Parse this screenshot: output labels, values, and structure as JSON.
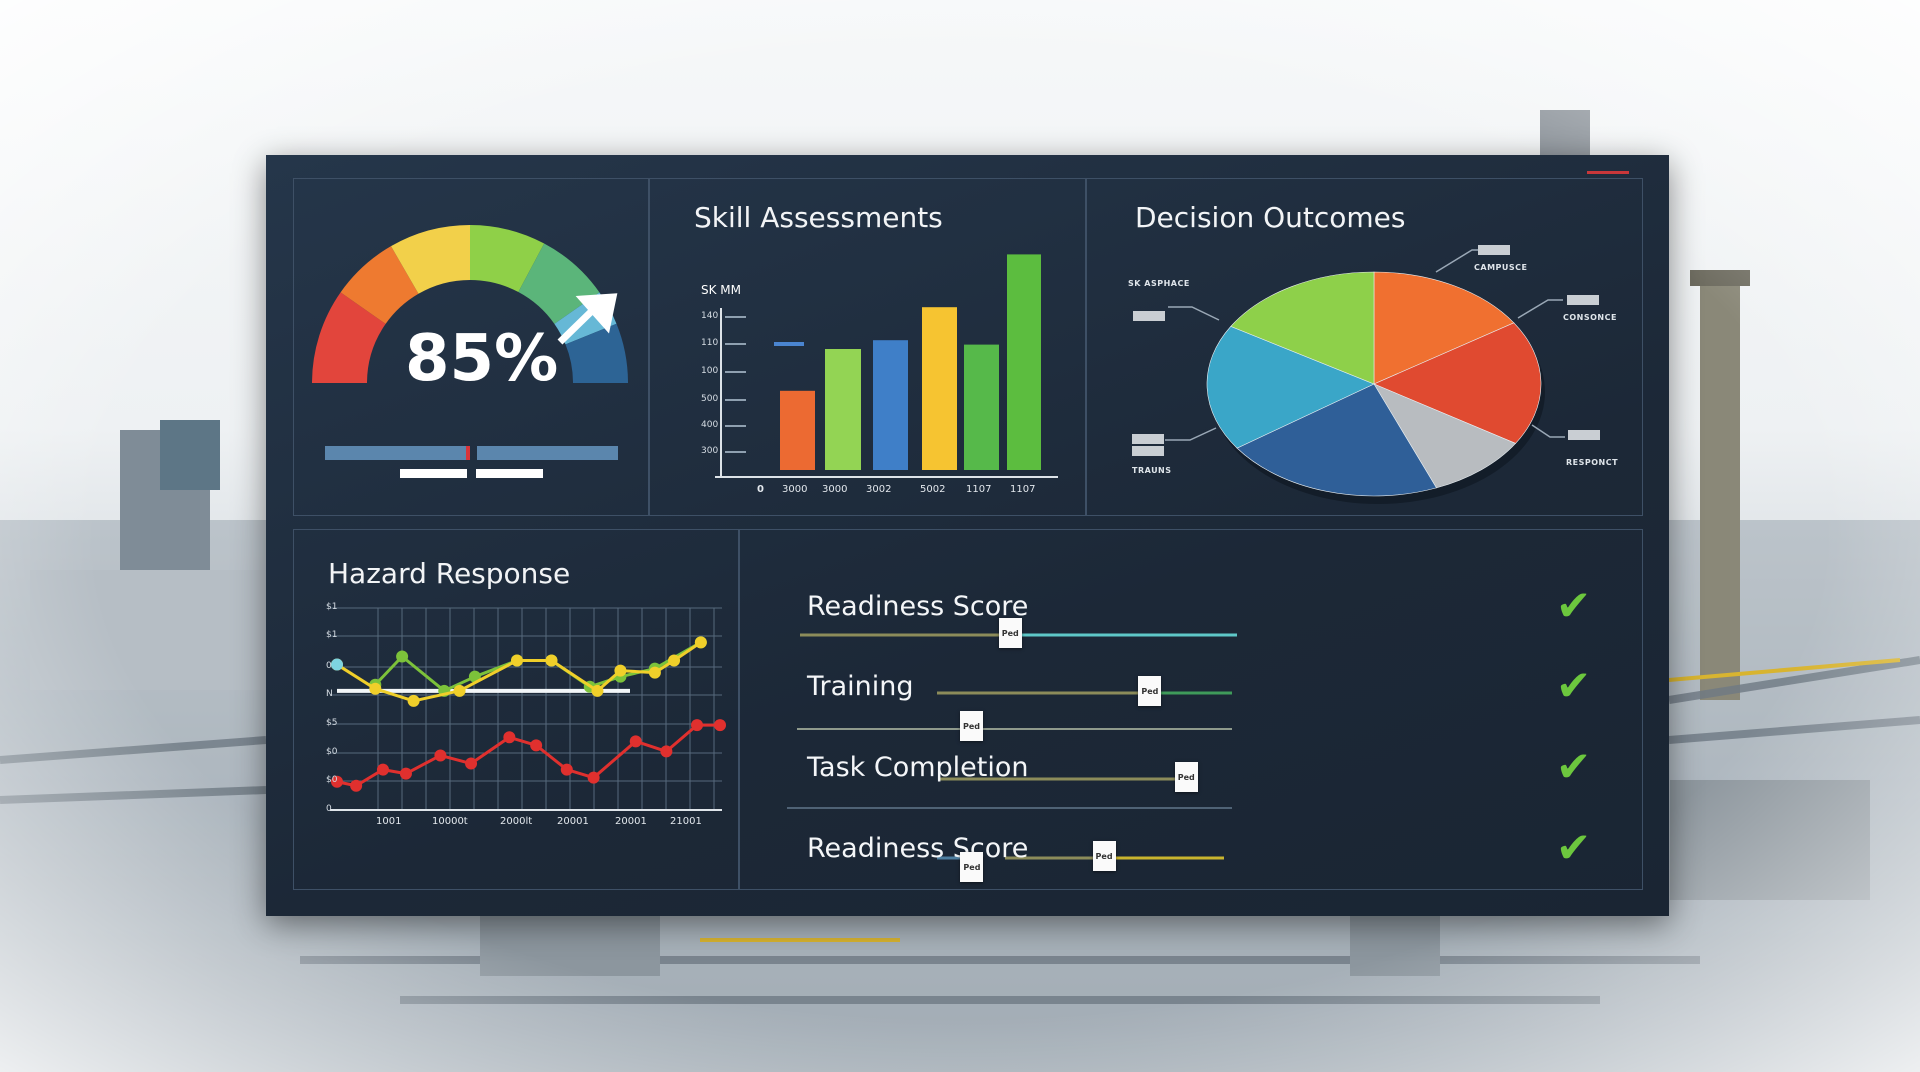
{
  "gauge": {
    "value_label": "85%",
    "value": 85,
    "colors": [
      "#e2453c",
      "#ee7a30",
      "#f2d04a",
      "#8fd048",
      "#5bb57a",
      "#66b8d6",
      "#2d6495"
    ]
  },
  "skill": {
    "title": "Skill Assessments",
    "chart_data": {
      "type": "bar",
      "title": "Skill Assessments",
      "ylabel": "SK MM",
      "ytick_labels": [
        "140",
        "110",
        "100",
        "500",
        "400",
        "300"
      ],
      "origin_label": "0",
      "categories": [
        "3000",
        "3000",
        "3002",
        "5002",
        "1107",
        "1107"
      ],
      "values": [
        36,
        55,
        59,
        74,
        57,
        98
      ],
      "colors": [
        "#ec6a32",
        "#93d454",
        "#3f7fc8",
        "#f6c431",
        "#56b94a",
        "#5cbd3f"
      ],
      "ylim": [
        0,
        100
      ]
    }
  },
  "decision": {
    "title": "Decision Outcomes",
    "chart_data": {
      "type": "pie",
      "title": "Decision Outcomes",
      "annotation": "SK ASPHACE",
      "slices": [
        {
          "label": "CAMPUSCE",
          "value": 15.8,
          "color": "#f07030"
        },
        {
          "label": "CONSONCE",
          "value": 18.1,
          "color": "#e04a30"
        },
        {
          "label": "RESPONCT",
          "value": 10.0,
          "color": "#b8bcc0"
        },
        {
          "label": "",
          "value": 21.4,
          "color": "#2f5f98"
        },
        {
          "label": "TRAUNS",
          "value": 18.3,
          "color": "#3aa6c8"
        },
        {
          "label": "",
          "value": 16.4,
          "color": "#8ed04a"
        }
      ]
    }
  },
  "hazard": {
    "title": "Hazard Response",
    "chart_data": {
      "type": "line",
      "title": "Hazard Response",
      "ytick_labels": [
        "$1",
        "$1",
        "0",
        "N",
        "$5",
        "$0",
        "$0",
        "0"
      ],
      "xtick_labels": [
        "1001",
        "10000t",
        "2000lt",
        "20001",
        "20001",
        "21001"
      ],
      "xlim": [
        0,
        100
      ],
      "ylim": [
        0,
        10
      ],
      "grid": true,
      "series": [
        {
          "name": "red",
          "color": "#e0302e",
          "points": [
            [
              0,
              1.4
            ],
            [
              5,
              1.2
            ],
            [
              12,
              2.0
            ],
            [
              18,
              1.8
            ],
            [
              27,
              2.7
            ],
            [
              35,
              2.3
            ],
            [
              45,
              3.6
            ],
            [
              52,
              3.2
            ],
            [
              60,
              2.0
            ],
            [
              67,
              1.6
            ],
            [
              78,
              3.4
            ],
            [
              86,
              2.9
            ],
            [
              94,
              4.2
            ],
            [
              100,
              4.2
            ]
          ]
        },
        {
          "name": "yellow",
          "color": "#f0cf2a",
          "points": [
            [
              0,
              7.2
            ],
            [
              10,
              6.0
            ],
            [
              20,
              5.4
            ],
            [
              32,
              5.9
            ],
            [
              47,
              7.4
            ],
            [
              56,
              7.4
            ],
            [
              68,
              5.9
            ],
            [
              74,
              6.9
            ],
            [
              83,
              6.8
            ],
            [
              88,
              7.4
            ],
            [
              95,
              8.3
            ]
          ]
        },
        {
          "name": "green",
          "color": "#7cc23a",
          "points": [
            [
              10,
              6.2
            ],
            [
              17,
              7.6
            ],
            [
              28,
              5.9
            ],
            [
              36,
              6.6
            ],
            [
              47,
              7.4
            ],
            [
              56,
              7.4
            ],
            [
              66,
              6.1
            ],
            [
              74,
              6.6
            ],
            [
              83,
              7.0
            ],
            [
              95,
              8.3
            ]
          ]
        }
      ],
      "baseline": 5.9
    }
  },
  "readiness": {
    "marker_label": "Ped",
    "rows": [
      {
        "label": "Readiness Score",
        "value": 0.48,
        "status": "✔"
      },
      {
        "label": "Training",
        "value": 0.72,
        "status": "✔"
      },
      {
        "label": "Task Completion",
        "value": 0.96,
        "status": "✔"
      },
      {
        "label": "Readiness Score",
        "value": 0.45,
        "status": "✔"
      }
    ],
    "extra_values": [
      0.4,
      0.12
    ]
  }
}
